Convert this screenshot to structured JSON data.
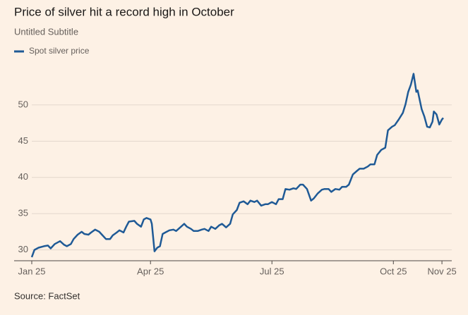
{
  "chart_data": {
    "type": "line",
    "title": "Price of silver hit a record high in October",
    "subtitle": "Untitled Subtitle",
    "source": "Source: FactSet",
    "x": [
      0,
      2,
      5,
      9,
      12,
      14,
      17,
      21,
      24,
      26,
      29,
      31,
      34,
      37,
      39,
      42,
      44,
      47,
      50,
      52,
      55,
      58,
      60,
      63,
      65,
      68,
      70,
      72,
      76,
      78,
      81,
      83,
      85,
      88,
      89,
      91,
      93,
      95,
      97,
      99,
      102,
      105,
      107,
      110,
      113,
      115,
      118,
      120,
      123,
      126,
      128,
      131,
      133,
      136,
      139,
      141,
      144,
      147,
      149,
      152,
      154,
      157,
      160,
      162,
      165,
      167,
      170,
      173,
      175,
      178,
      181,
      183,
      186,
      188,
      191,
      194,
      196,
      199,
      201,
      204,
      207,
      209,
      212,
      215,
      217,
      220,
      222,
      225,
      228,
      230,
      233,
      235,
      238,
      241,
      243,
      246,
      249,
      251,
      254,
      256,
      259,
      262,
      264,
      267,
      269,
      272,
      275,
      277,
      279,
      281,
      283,
      285,
      286,
      289,
      291,
      293,
      295,
      297,
      298,
      300,
      301,
      302,
      304,
      305
    ],
    "series": [
      {
        "name": "Spot silver price",
        "color": "#1f5a96",
        "values": [
          29.0,
          30.0,
          30.3,
          30.5,
          30.6,
          30.2,
          30.8,
          31.2,
          30.7,
          30.5,
          30.8,
          31.5,
          32.1,
          32.5,
          32.2,
          32.1,
          32.4,
          32.8,
          32.5,
          32.1,
          31.5,
          31.5,
          32.0,
          32.4,
          32.7,
          32.4,
          33.2,
          33.9,
          34.0,
          33.6,
          33.2,
          34.2,
          34.4,
          34.2,
          33.6,
          29.8,
          30.3,
          30.5,
          32.2,
          32.4,
          32.7,
          32.8,
          32.6,
          33.1,
          33.6,
          33.2,
          32.9,
          32.6,
          32.6,
          32.8,
          32.9,
          32.6,
          33.2,
          32.9,
          33.4,
          33.6,
          33.1,
          33.6,
          34.9,
          35.5,
          36.5,
          36.7,
          36.3,
          36.8,
          36.6,
          36.8,
          36.1,
          36.3,
          36.3,
          36.6,
          36.3,
          37.0,
          37.0,
          38.4,
          38.3,
          38.5,
          38.4,
          39.0,
          39.0,
          38.4,
          36.8,
          37.1,
          37.8,
          38.3,
          38.4,
          38.4,
          38.0,
          38.4,
          38.3,
          38.7,
          38.7,
          39.0,
          40.4,
          40.9,
          41.2,
          41.2,
          41.5,
          41.8,
          41.8,
          43.1,
          43.8,
          44.1,
          46.5,
          47.0,
          47.2,
          48.0,
          48.9,
          50.1,
          51.8,
          52.8,
          54.3,
          51.8,
          52.0,
          49.4,
          48.4,
          47.0,
          46.9,
          47.7,
          49.1,
          48.7,
          48.0,
          47.3,
          48.0,
          48.2
        ]
      }
    ],
    "xlim": [
      0,
      305
    ],
    "xticks": [
      {
        "value": 0,
        "label": "Jan 25"
      },
      {
        "value": 88,
        "label": "Apr 25"
      },
      {
        "value": 178,
        "label": "Jul 25"
      },
      {
        "value": 268,
        "label": "Oct 25"
      },
      {
        "value": 304,
        "label": "Nov 25"
      }
    ],
    "ylim": [
      28.5,
      55
    ],
    "yticks": [
      30,
      35,
      40,
      45,
      50
    ],
    "grid": true
  }
}
